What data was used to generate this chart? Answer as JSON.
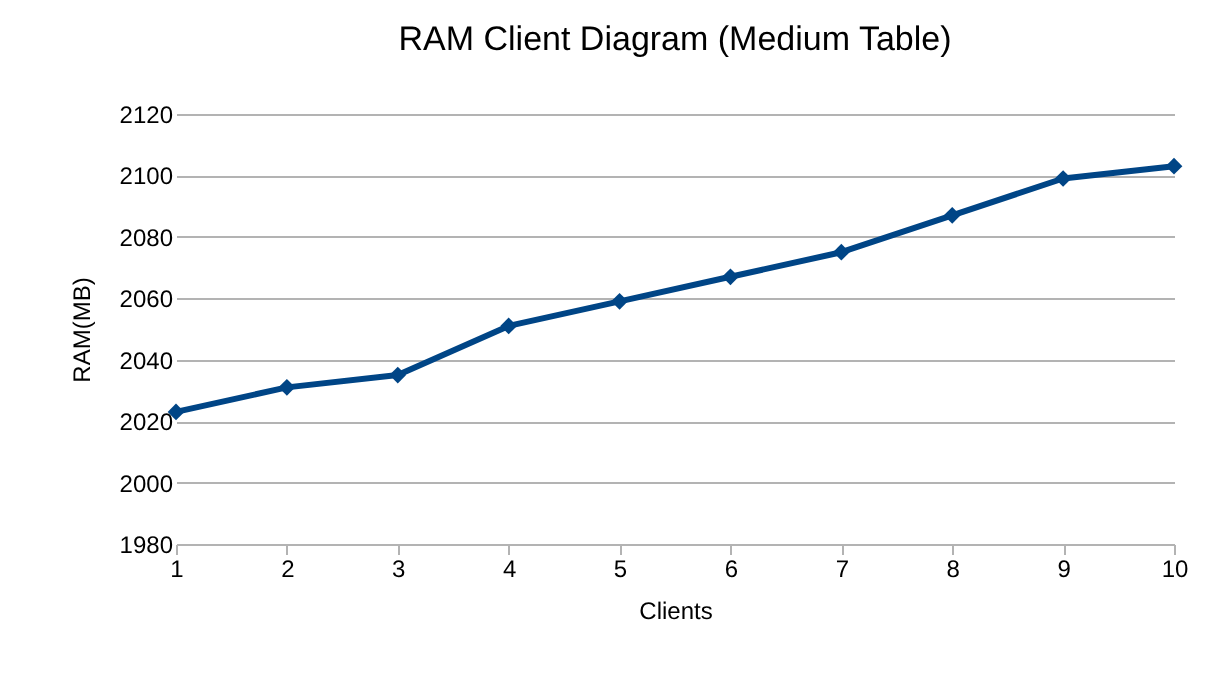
{
  "chart_data": {
    "type": "line",
    "title": "RAM Client Diagram (Medium Table)",
    "xlabel": "Clients",
    "ylabel": "RAM(MB)",
    "x": [
      1,
      2,
      3,
      4,
      5,
      6,
      7,
      8,
      9,
      10
    ],
    "series": [
      {
        "color": "#004586",
        "values": [
          2023,
          2031,
          2035,
          2051,
          2059,
          2067,
          2075,
          2087,
          2099,
          2103
        ]
      }
    ],
    "xlim": [
      1,
      10
    ],
    "xticks": [
      1,
      2,
      3,
      4,
      5,
      6,
      7,
      8,
      9,
      10
    ],
    "ylim": [
      1980,
      2120
    ],
    "yticks": [
      1980,
      2000,
      2020,
      2040,
      2060,
      2080,
      2100,
      2120
    ],
    "grid": "y",
    "legend": false,
    "marker": "diamond",
    "line_style": "solid"
  }
}
